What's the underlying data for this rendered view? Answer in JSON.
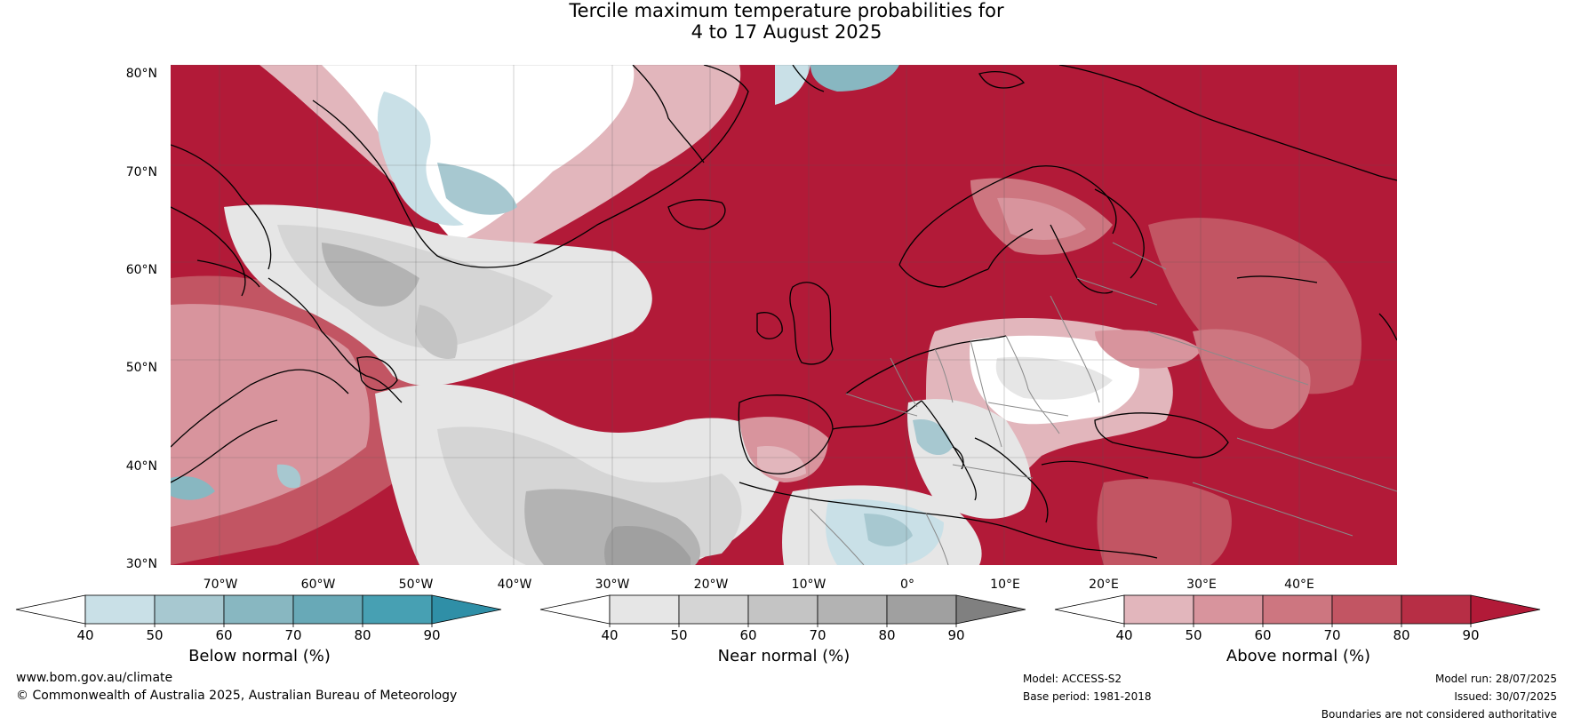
{
  "title_line1": "Tercile maximum temperature probabilities for",
  "title_line2": "4 to 17 August 2025",
  "lat_labels": [
    "80°N",
    "70°N",
    "60°N",
    "50°N",
    "40°N",
    "30°N"
  ],
  "lon_labels": [
    "70°W",
    "60°W",
    "50°W",
    "40°W",
    "30°W",
    "20°W",
    "10°W",
    "0°",
    "10°E",
    "20°E",
    "30°E",
    "40°E"
  ],
  "colorbars": {
    "below": {
      "title": "Below normal (%)",
      "ticks": [
        "40",
        "50",
        "60",
        "70",
        "80",
        "90"
      ],
      "colors": [
        "#ffffff",
        "#c9e0e7",
        "#a7c8d0",
        "#88b7c1",
        "#68a9b7",
        "#47a0b3",
        "#2f8fa7"
      ]
    },
    "near": {
      "title": "Near normal (%)",
      "ticks": [
        "40",
        "50",
        "60",
        "70",
        "80",
        "90"
      ],
      "colors": [
        "#ffffff",
        "#e6e6e6",
        "#d5d5d5",
        "#c4c4c4",
        "#b3b3b3",
        "#a0a0a0",
        "#808080"
      ]
    },
    "above": {
      "title": "Above normal (%)",
      "ticks": [
        "40",
        "50",
        "60",
        "70",
        "80",
        "90"
      ],
      "colors": [
        "#ffffff",
        "#e2b6bc",
        "#d8949d",
        "#cd7680",
        "#c25563",
        "#b72e45",
        "#b21a38"
      ]
    }
  },
  "footer": {
    "website": "www.bom.gov.au/climate",
    "copyright": "© Commonwealth of Australia 2025, Australian Bureau of Meteorology",
    "model": "Model: ACCESS-S2",
    "base_period": "Base period: 1981-2018",
    "model_run": "Model run: 28/07/2025",
    "issued": "Issued: 30/07/2025",
    "disclaimer": "Boundaries are not considered authoritative"
  }
}
